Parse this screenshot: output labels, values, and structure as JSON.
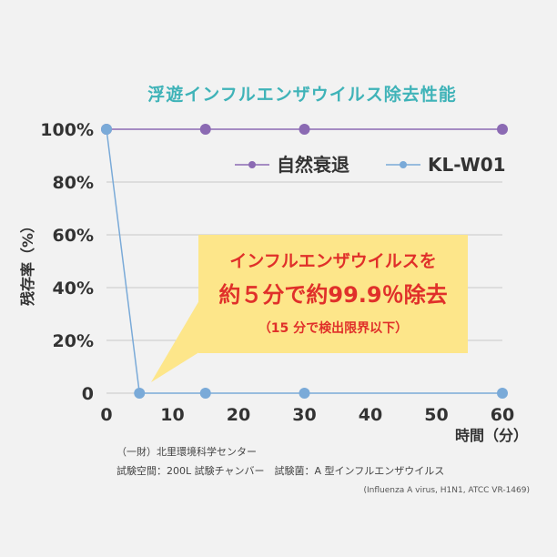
{
  "chart_data": {
    "type": "line",
    "title": "浮遊インフルエンザウイルス除去性能",
    "xlabel": "時間（分）",
    "ylabel": "残存率（%）",
    "x_ticks": [
      "0",
      "10",
      "20",
      "30",
      "40",
      "50",
      "60"
    ],
    "y_ticks": [
      "0",
      "20%",
      "40%",
      "60%",
      "80%",
      "100%"
    ],
    "xlim": [
      0,
      60
    ],
    "ylim": [
      0,
      100
    ],
    "grid": true,
    "legend_position": "top-right",
    "series": [
      {
        "name": "自然衰退",
        "color": "#8b6ab3",
        "points": [
          [
            0,
            100
          ],
          [
            15,
            100
          ],
          [
            30,
            100
          ],
          [
            60,
            100
          ]
        ]
      },
      {
        "name": "KL-W01",
        "color": "#7aaad8",
        "points": [
          [
            0,
            100
          ],
          [
            5,
            0
          ],
          [
            15,
            0
          ],
          [
            30,
            0
          ],
          [
            60,
            0
          ]
        ]
      }
    ],
    "annotation": {
      "line1": "インフルエンザウイルスを",
      "line2": "約５分で約99.9％除去",
      "line3": "（15 分で検出限界以下）"
    }
  },
  "notes": {
    "org": "（一財）北里環境科学センター",
    "conditions": "試験空間：200L 試験チャンバー　試験菌：A 型インフルエンザウイルス",
    "strain": "(Influenza A virus, H1N1, ATCC VR-1469)"
  }
}
